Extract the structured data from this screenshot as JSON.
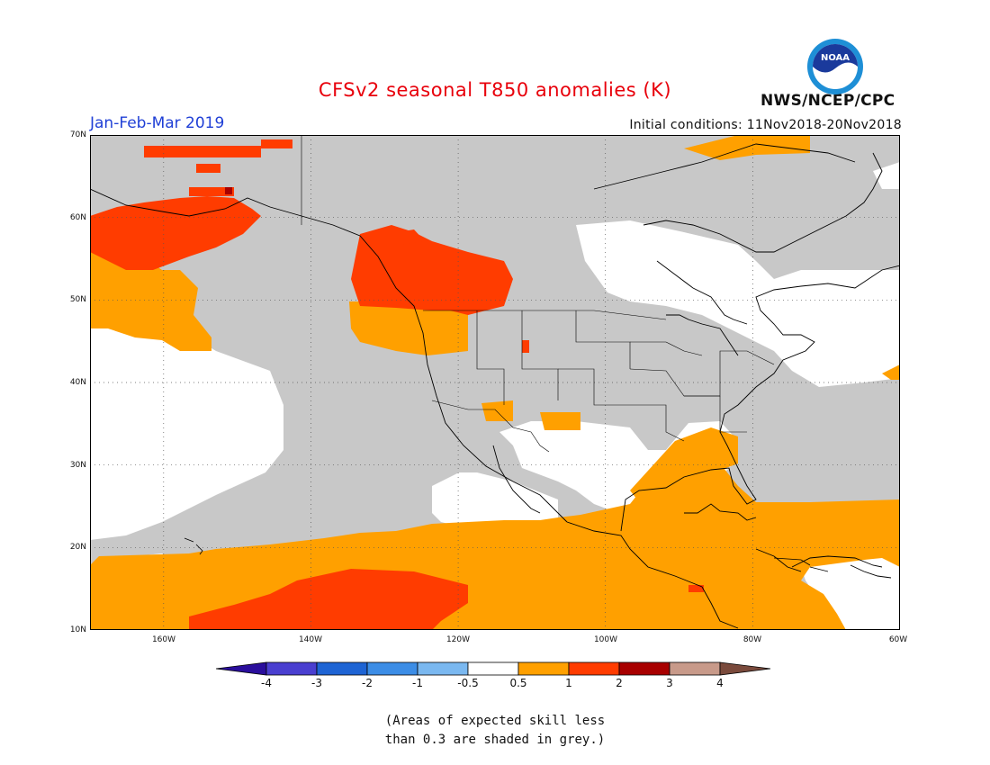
{
  "title": "CFSv2 seasonal T850 anomalies (K)",
  "period": "Jan-Feb-Mar 2019",
  "agency": "NWS/NCEP/CPC",
  "logo_text": "NOAA",
  "initial_conditions": "Initial conditions: 11Nov2018-20Nov2018",
  "lat_labels": [
    "70N",
    "60N",
    "50N",
    "40N",
    "30N",
    "20N",
    "10N"
  ],
  "lon_labels": [
    "160W",
    "140W",
    "120W",
    "100W",
    "80W",
    "60W"
  ],
  "colorbar": {
    "labels": [
      "-4",
      "-3",
      "-2",
      "-1",
      "-0.5",
      "0.5",
      "1",
      "2",
      "3",
      "4"
    ],
    "colors": [
      "#2a0e9c",
      "#4a3fd0",
      "#1e64d4",
      "#3c8de6",
      "#7ab8f0",
      "#ffffff",
      "#ffa000",
      "#ff3c00",
      "#a80000",
      "#c89a8a",
      "#7a4a3c"
    ]
  },
  "note_line1": "(Areas of expected skill less",
  "note_line2": "than 0.3 are shaded in grey.)",
  "colors": {
    "skill_grey": "#c8c8c8",
    "anom_05_1": "#ffa000",
    "anom_1_2": "#ff3c00",
    "anom_2_3": "#a80000"
  }
}
